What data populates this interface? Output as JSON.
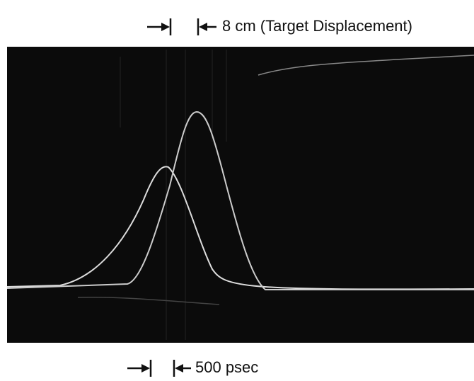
{
  "annotations": {
    "top": "8 cm (Target Displacement)",
    "bottom": "500 psec"
  }
}
